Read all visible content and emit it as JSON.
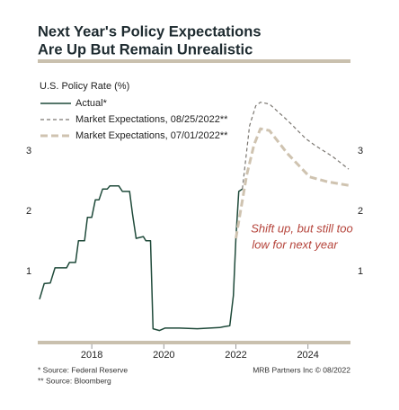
{
  "chart_data": {
    "type": "line",
    "title": [
      "Next Year's Policy Expectations",
      "Are Up But Remain Unrealistic"
    ],
    "ylabel": "U.S. Policy Rate (%)",
    "annotation": [
      "Shift up, but still too",
      "low for next year"
    ],
    "xlim": [
      2016.5,
      2025.18
    ],
    "xticks": [
      2018,
      2020,
      2022,
      2024
    ],
    "ylim": [
      -0.15,
      4.0
    ],
    "yticks": [
      1,
      2,
      3
    ],
    "y2lim": [
      -0.15,
      4.0
    ],
    "y2ticks": [
      1,
      2,
      3
    ],
    "series": [
      {
        "name": "Actual*",
        "color": "#1f4a3a",
        "line_style": "solid",
        "line_width": 1.5,
        "x": [
          2016.55,
          2016.68,
          2016.85,
          2016.98,
          2017.3,
          2017.38,
          2017.55,
          2017.63,
          2017.8,
          2017.88,
          2018.0,
          2018.1,
          2018.2,
          2018.3,
          2018.43,
          2018.5,
          2018.75,
          2018.85,
          2019.05,
          2019.13,
          2019.23,
          2019.43,
          2019.5,
          2019.63,
          2019.7,
          2019.88,
          2020.03,
          2020.43,
          2020.93,
          2021.55,
          2021.63,
          2021.83,
          2021.93,
          2022.0,
          2022.08,
          2022.18
        ],
        "values": [
          0.54,
          0.8,
          0.81,
          1.06,
          1.06,
          1.15,
          1.15,
          1.51,
          1.51,
          1.9,
          1.9,
          2.19,
          2.19,
          2.37,
          2.37,
          2.42,
          2.42,
          2.33,
          2.33,
          1.96,
          1.55,
          1.58,
          1.51,
          1.51,
          0.05,
          0.02,
          0.06,
          0.06,
          0.05,
          0.07,
          0.08,
          0.1,
          0.6,
          1.55,
          2.33,
          2.37
        ]
      },
      {
        "name": "Market Expectations, 08/25/2022**",
        "color": "#7a7670",
        "line_style": "dashed",
        "line_width": 1.2,
        "x": [
          2022.18,
          2022.38,
          2022.55,
          2022.68,
          2022.93,
          2023.43,
          2023.93,
          2024.18,
          2024.68,
          2025.13
        ],
        "values": [
          2.37,
          3.42,
          3.75,
          3.81,
          3.78,
          3.51,
          3.21,
          3.1,
          2.91,
          2.7
        ]
      },
      {
        "name": "Market Expectations, 07/01/2022**",
        "color": "#cfc3b0",
        "line_style": "dashed",
        "line_width": 3,
        "x": [
          2022.0,
          2022.3,
          2022.5,
          2022.68,
          2022.93,
          2023.43,
          2024.05,
          2024.55,
          2025.13
        ],
        "values": [
          1.55,
          2.6,
          3.1,
          3.37,
          3.34,
          2.96,
          2.57,
          2.49,
          2.43
        ]
      }
    ]
  },
  "footnotes": [
    "*  Source: Federal Reserve",
    "** Source: Bloomberg"
  ],
  "credit": "MRB Partners Inc © 08/2022"
}
